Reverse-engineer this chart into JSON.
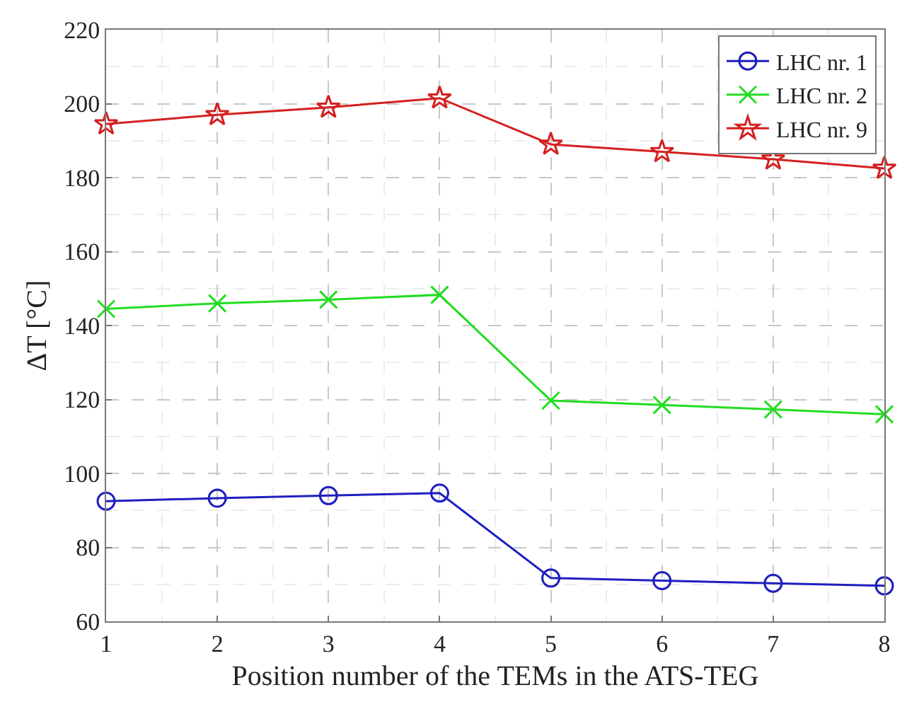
{
  "chart_data": {
    "type": "line",
    "xlabel": "Position number of the TEMs in the ATS-TEG",
    "ylabel": "ΔT [°C]",
    "x": [
      1,
      2,
      3,
      4,
      5,
      6,
      7,
      8
    ],
    "xlim": [
      1,
      8
    ],
    "xticks": [
      1,
      2,
      3,
      4,
      5,
      6,
      7,
      8
    ],
    "ylim": [
      60,
      220
    ],
    "yticks": [
      60,
      80,
      100,
      120,
      140,
      160,
      180,
      200,
      220
    ],
    "grid": true,
    "legend": "top right",
    "line_style": "solid",
    "series": [
      {
        "name": "LHC nr. 1",
        "color": "#1f1fbf",
        "marker": "circle",
        "values": [
          92.5,
          93.3,
          94,
          94.7,
          71.7,
          71,
          70.3,
          69.6
        ]
      },
      {
        "name": "LHC nr. 2",
        "color": "#22dd22",
        "marker": "cross",
        "values": [
          144.5,
          146,
          147,
          148.3,
          119.7,
          118.5,
          117.3,
          116
        ]
      },
      {
        "name": "LHC nr. 9",
        "color": "#d42020",
        "marker": "star",
        "values": [
          194.5,
          197,
          199,
          201.5,
          189,
          187,
          185,
          182.5
        ]
      }
    ]
  }
}
